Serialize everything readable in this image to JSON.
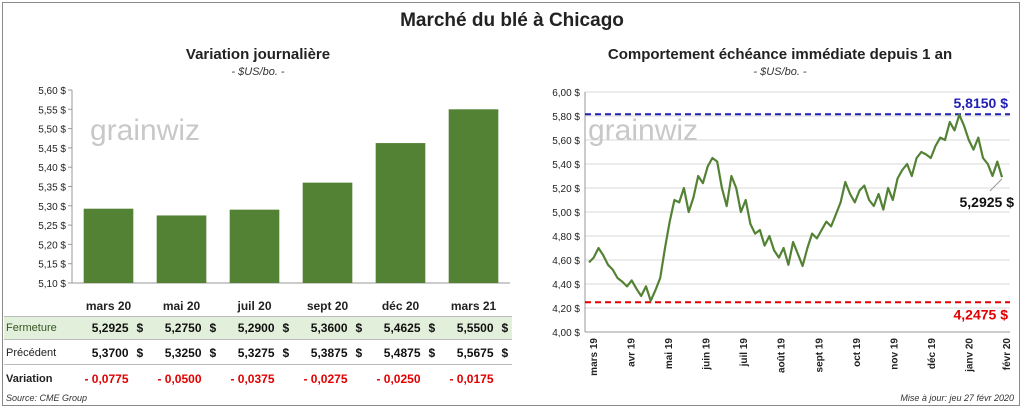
{
  "title": "Marché du blé à Chicago",
  "source": "Source: CME Group",
  "updated": "Mise à jour: jeu 27 févr 2020",
  "watermark": "grainwiz",
  "colors": {
    "bar": "#548235",
    "line": "#548235",
    "high": "#1f1fb4",
    "low": "#e00000",
    "row_hl": "#e2efda",
    "neg": "#e00000"
  },
  "table": {
    "rows": [
      {
        "label": "Fermeture",
        "values": [
          "5,2925",
          "5,2750",
          "5,2900",
          "5,3600",
          "5,4625",
          "5,5500"
        ],
        "currency": "$"
      },
      {
        "label": "Précédent",
        "values": [
          "5,3700",
          "5,3250",
          "5,3275",
          "5,3875",
          "5,4875",
          "5,5675"
        ],
        "currency": "$"
      },
      {
        "label": "Variation",
        "values": [
          "- 0,0775",
          "- 0,0500",
          "- 0,0375",
          "- 0,0275",
          "- 0,0250",
          "- 0,0175"
        ]
      }
    ]
  },
  "chart_data": [
    {
      "type": "bar",
      "title": "Variation journalière",
      "subtitle": "- $US/bo. -",
      "categories": [
        "mars 20",
        "mai 20",
        "juil 20",
        "sept 20",
        "déc 20",
        "mars 21"
      ],
      "values": [
        5.2925,
        5.275,
        5.29,
        5.36,
        5.4625,
        5.55
      ],
      "ylim": [
        5.1,
        5.6
      ],
      "yticks": [
        "5,10 $",
        "5,15 $",
        "5,20 $",
        "5,25 $",
        "5,30 $",
        "5,35 $",
        "5,40 $",
        "5,45 $",
        "5,50 $",
        "5,55 $",
        "5,60 $"
      ],
      "grid": false
    },
    {
      "type": "line",
      "title": "Comportement  échéance immédiate depuis 1 an",
      "subtitle": "- $US/bo. -",
      "ylim": [
        4.0,
        6.0
      ],
      "yticks": [
        "4,00 $",
        "4,20 $",
        "4,40 $",
        "4,60 $",
        "4,80 $",
        "5,00 $",
        "5,20 $",
        "5,40 $",
        "5,60 $",
        "5,80 $",
        "6,00 $"
      ],
      "xticks": [
        "mars 19",
        "avr 19",
        "mai 19",
        "juin 19",
        "juil 19",
        "août 19",
        "sept 19",
        "oct 19",
        "nov 19",
        "déc 19",
        "janv 20",
        "févr 20"
      ],
      "grid": true,
      "high": {
        "value": 5.815,
        "label": "5,8150 $"
      },
      "low": {
        "value": 4.2475,
        "label": "4,2475 $"
      },
      "last": {
        "value": 5.2925,
        "label": "5,2925 $"
      },
      "series": [
        {
          "values": [
            4.58,
            4.62,
            4.7,
            4.64,
            4.56,
            4.52,
            4.45,
            4.42,
            4.38,
            4.43,
            4.36,
            4.3,
            4.38,
            4.26,
            4.35,
            4.45,
            4.7,
            4.92,
            5.1,
            5.08,
            5.2,
            5.0,
            5.12,
            5.3,
            5.24,
            5.38,
            5.45,
            5.42,
            5.2,
            5.05,
            5.3,
            5.2,
            5.0,
            5.1,
            4.9,
            4.82,
            4.85,
            4.72,
            4.8,
            4.68,
            4.62,
            4.7,
            4.56,
            4.75,
            4.65,
            4.55,
            4.7,
            4.82,
            4.78,
            4.85,
            4.92,
            4.88,
            4.98,
            5.08,
            5.25,
            5.15,
            5.08,
            5.18,
            5.22,
            5.1,
            5.05,
            5.15,
            5.02,
            5.2,
            5.1,
            5.28,
            5.35,
            5.4,
            5.3,
            5.45,
            5.5,
            5.48,
            5.45,
            5.55,
            5.62,
            5.6,
            5.75,
            5.68,
            5.81,
            5.72,
            5.6,
            5.52,
            5.62,
            5.45,
            5.4,
            5.3,
            5.42,
            5.29
          ]
        }
      ]
    }
  ]
}
